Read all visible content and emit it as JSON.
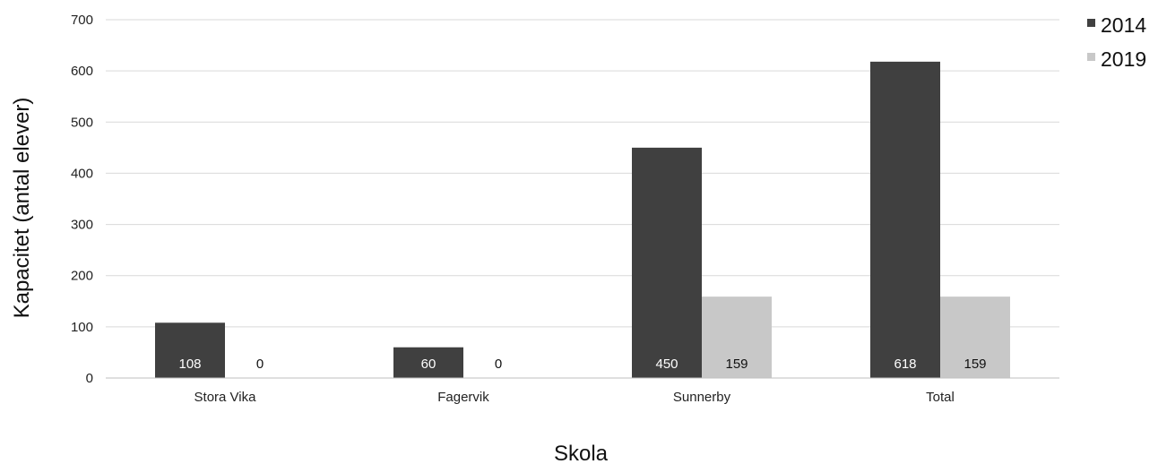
{
  "chart_data": {
    "type": "bar",
    "categories": [
      "Stora Vika",
      "Fagervik",
      "Sunnerby",
      "Total"
    ],
    "series": [
      {
        "name": "2014",
        "values": [
          108,
          60,
          450,
          618
        ],
        "color": "#404040",
        "label_color": "#ffffff"
      },
      {
        "name": "2019",
        "values": [
          0,
          0,
          159,
          159
        ],
        "color": "#c8c8c8",
        "label_color": "#111111"
      }
    ],
    "data_labels": [
      [
        "108",
        "60",
        "450",
        "618"
      ],
      [
        "0",
        "0",
        "159",
        "159"
      ]
    ],
    "ylabel": "Kapacitet (antal elever)",
    "xlabel": "Skola",
    "ylim": [
      0,
      700
    ],
    "yticks": [
      0,
      100,
      200,
      300,
      400,
      500,
      600,
      700
    ],
    "ytick_labels": [
      "0",
      "100",
      "200",
      "300",
      "400",
      "500",
      "600",
      "700"
    ],
    "grid": true,
    "grid_color": "#d9d9d9",
    "legend_position": "top-right"
  }
}
